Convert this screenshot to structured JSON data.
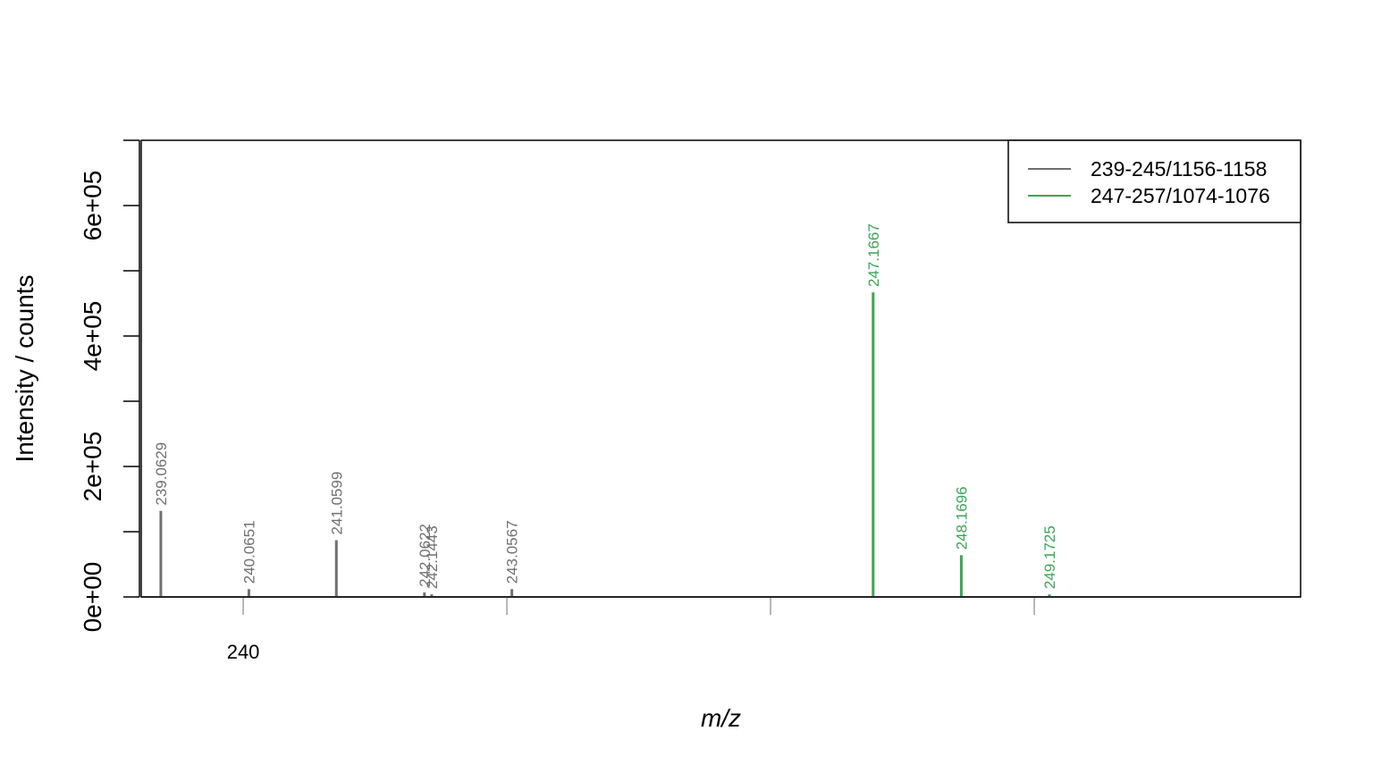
{
  "chart_data": {
    "type": "bar",
    "xlabel": "m/z",
    "ylabel": "Intensity / counts",
    "xlim": [
      238.84,
      252.03
    ],
    "ylim": [
      0,
      700000
    ],
    "x_ticks": [
      240,
      243,
      246,
      249
    ],
    "x_tick_labels": [
      "240",
      "",
      "",
      ""
    ],
    "y_ticks": [
      0,
      100000,
      200000,
      300000,
      400000,
      500000,
      600000,
      700000
    ],
    "y_tick_labels": [
      {
        "value": 0,
        "label": "0e+00"
      },
      {
        "value": 200000,
        "label": "2e+05"
      },
      {
        "value": 400000,
        "label": "4e+05"
      },
      {
        "value": 600000,
        "label": "6e+05"
      }
    ],
    "legend_position": "top-right",
    "series": [
      {
        "name": "239-245/1156-1158",
        "color": "#707070",
        "points": [
          {
            "x": 239.0629,
            "y": 132000,
            "label": "239.0629"
          },
          {
            "x": 240.0651,
            "y": 12000,
            "label": "240.0651"
          },
          {
            "x": 241.0599,
            "y": 87000,
            "label": "241.0599"
          },
          {
            "x": 242.0622,
            "y": 7000,
            "label": "242.0622"
          },
          {
            "x": 242.1443,
            "y": 4000,
            "label": "242.1443"
          },
          {
            "x": 243.0567,
            "y": 12000,
            "label": "243.0567"
          }
        ]
      },
      {
        "name": "247-257/1074-1076",
        "color": "#3aa655",
        "points": [
          {
            "x": 247.1667,
            "y": 467000,
            "label": "247.1667"
          },
          {
            "x": 248.1696,
            "y": 64000,
            "label": "248.1696"
          },
          {
            "x": 249.1725,
            "y": 4000,
            "label": "249.1725"
          }
        ]
      }
    ]
  }
}
